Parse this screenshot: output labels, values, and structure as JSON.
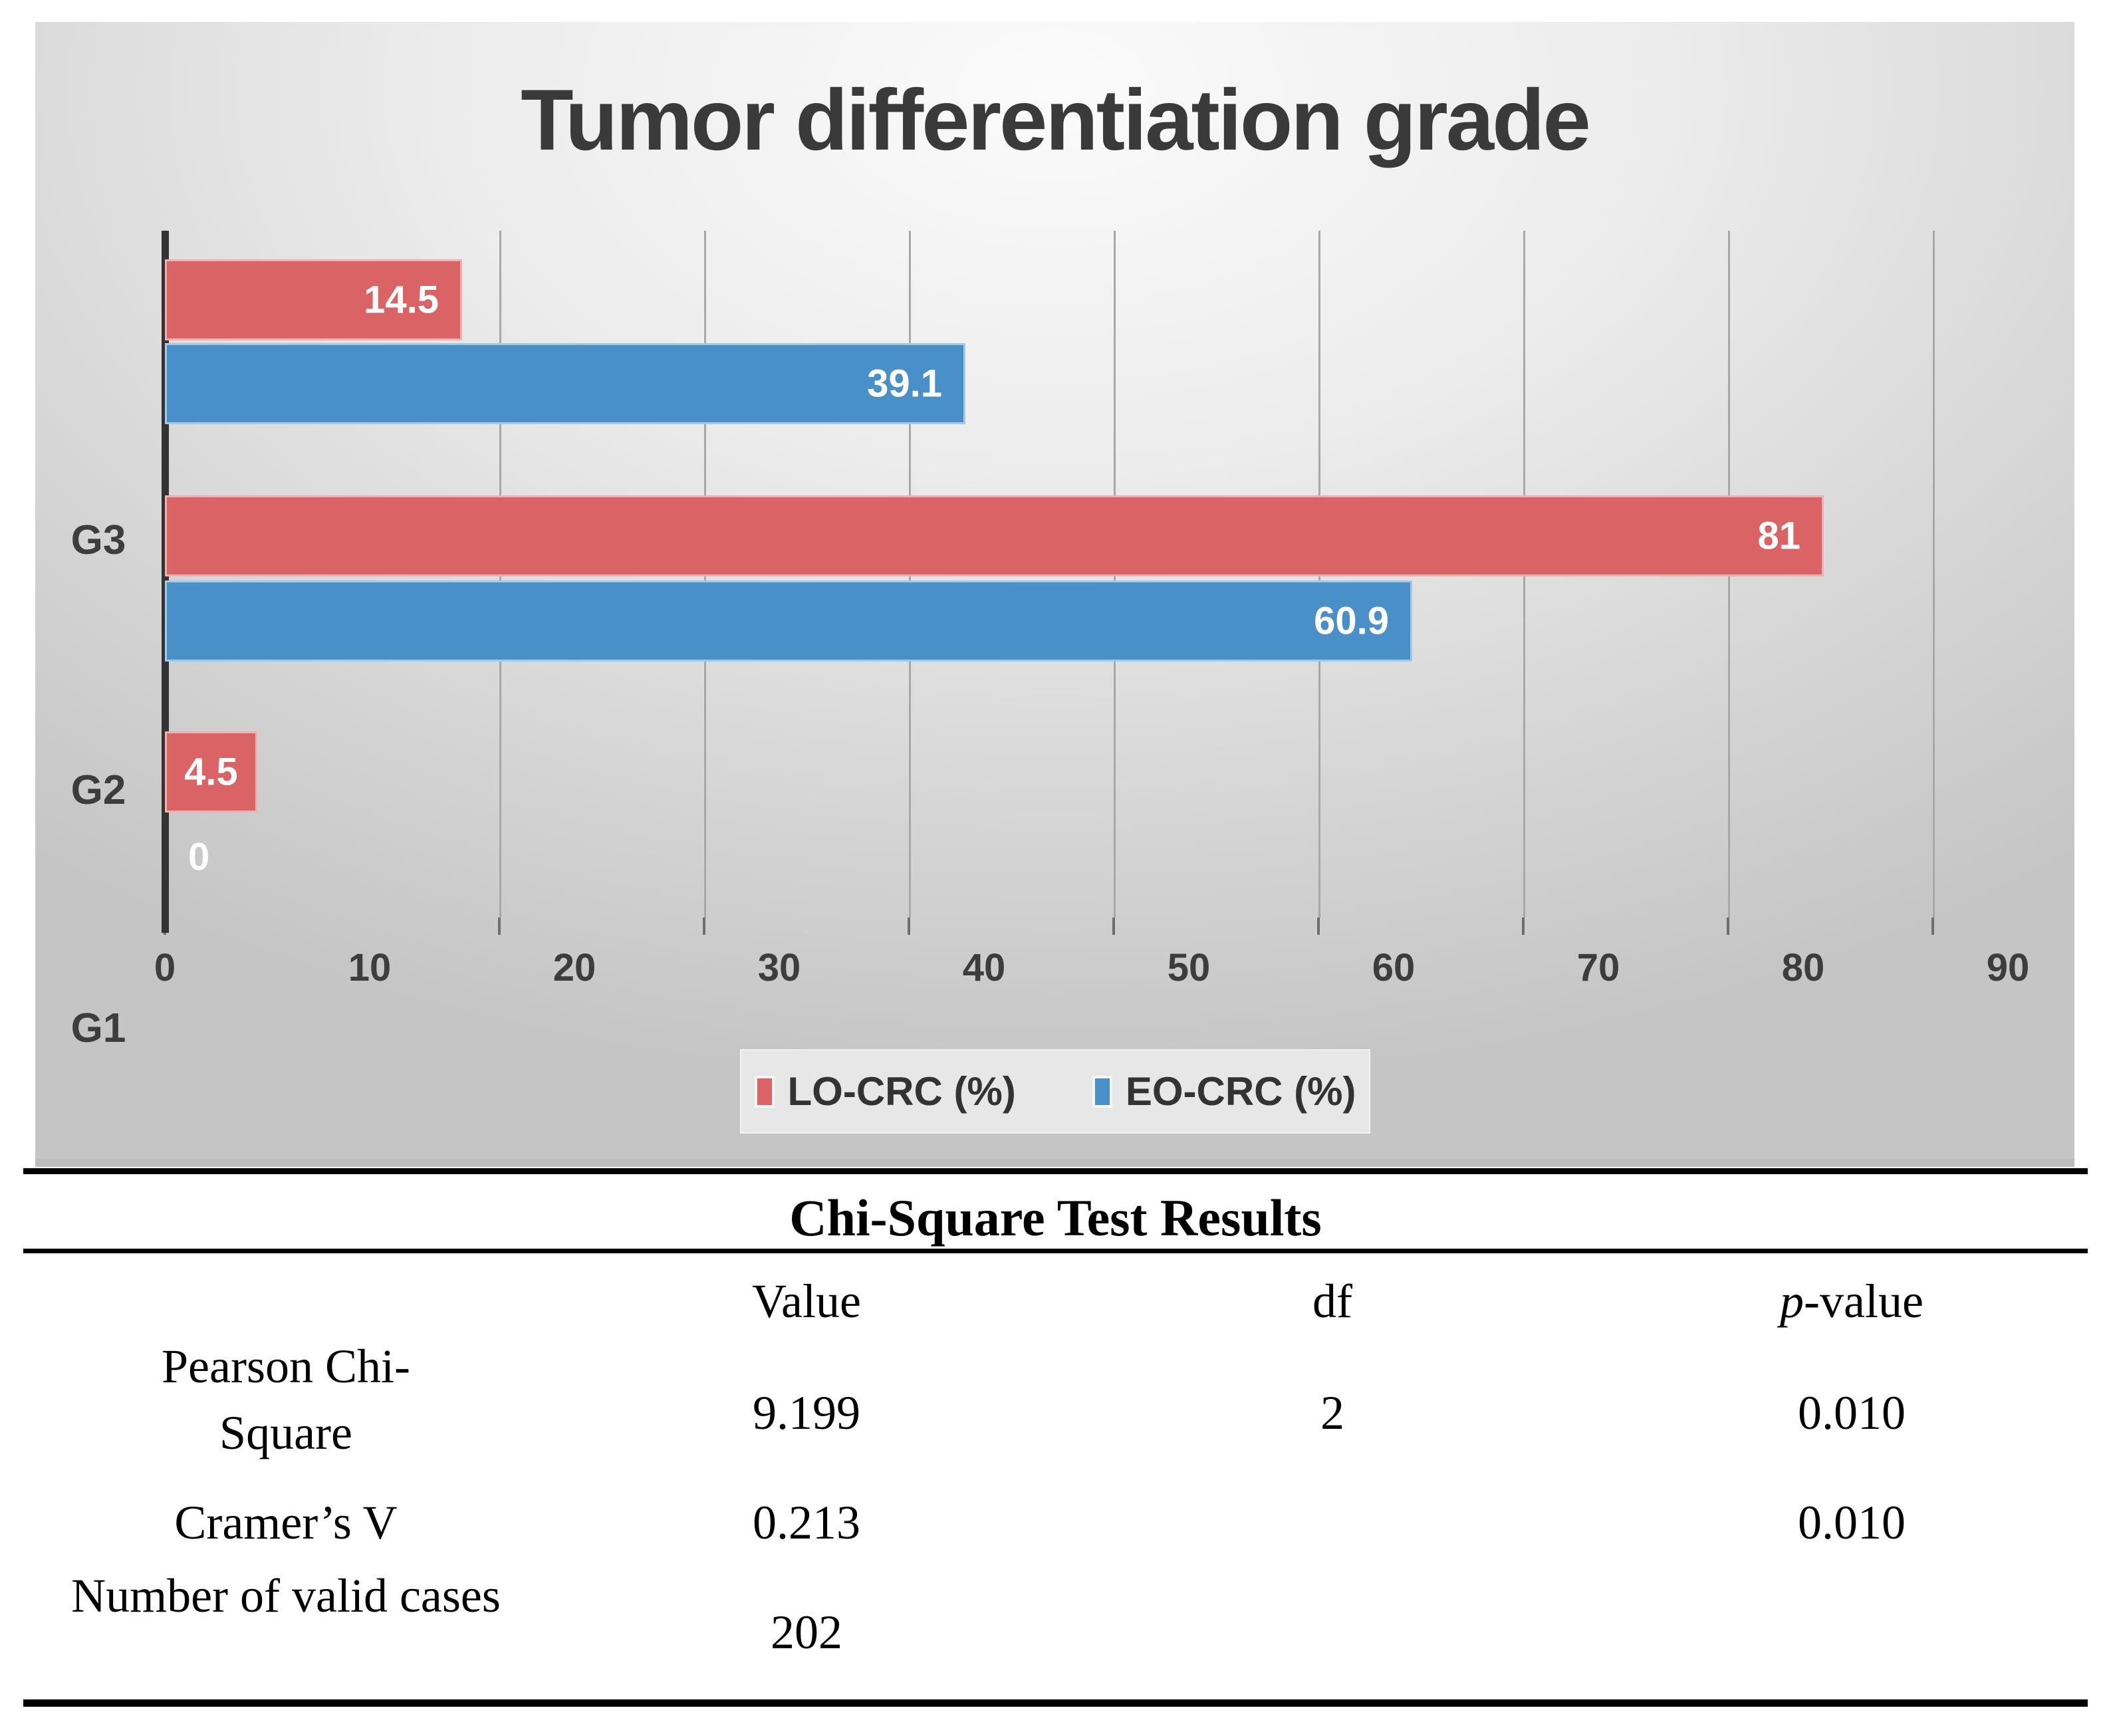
{
  "chart_data": {
    "type": "bar",
    "orientation": "horizontal",
    "title": "Tumor differentiation grade",
    "categories": [
      "G3",
      "G2",
      "G1"
    ],
    "series": [
      {
        "name": "LO-CRC (%)",
        "color": "#d96365",
        "values": [
          14.5,
          81,
          4.5
        ],
        "labels": [
          "14.5",
          "81",
          "4.5"
        ]
      },
      {
        "name": "EO-CRC (%)",
        "color": "#4a90c8",
        "values": [
          39.1,
          60.9,
          0
        ],
        "labels": [
          "39.1",
          "60.9",
          "0"
        ]
      }
    ],
    "x_ticks": [
      "0",
      "10",
      "20",
      "30",
      "40",
      "50",
      "60",
      "70",
      "80",
      "90"
    ],
    "xlim": [
      0,
      90
    ],
    "grid": true,
    "legend_position": "bottom",
    "background": "gray-gradient",
    "label_color": "#3d3d3d",
    "value_label_color": "#ffffff"
  },
  "table": {
    "title": "Chi-Square Test Results",
    "columns": [
      "",
      "Value",
      "df",
      "p-value"
    ],
    "p_header": {
      "prefix": "p",
      "suffix": "-value"
    },
    "headers": {
      "value": "Value",
      "df": "df"
    },
    "rows": [
      {
        "label": "Pearson Chi-Square",
        "value": "9.199",
        "df": "2",
        "p": "0.010"
      },
      {
        "label": "Cramer’s V",
        "value": "0.213",
        "df": "",
        "p": "0.010"
      },
      {
        "label": "Number of valid cases",
        "value": "202",
        "df": "",
        "p": ""
      }
    ]
  }
}
